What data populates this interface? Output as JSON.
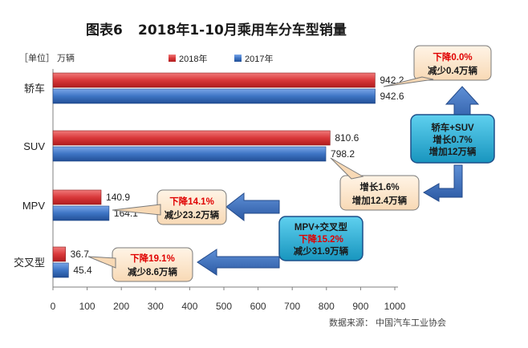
{
  "title_prefix": "图表6",
  "title_main": "2018年1-10月乘用车分车型销量",
  "unit": "［单位］ 万辆",
  "source": "数据来源：  中国汽车工业协会",
  "colors": {
    "s2018": "#d9383a",
    "s2017": "#3d74c4",
    "callout_fill": "#fde8cf",
    "teal": "#1fa0c7"
  },
  "chart_data": {
    "type": "bar",
    "orientation": "horizontal",
    "categories": [
      "轿车",
      "SUV",
      "MPV",
      "交叉型"
    ],
    "series": [
      {
        "name": "2018年",
        "values": [
          942.2,
          810.6,
          140.9,
          36.7
        ]
      },
      {
        "name": "2017年",
        "values": [
          942.6,
          798.2,
          164.1,
          45.4
        ]
      }
    ],
    "xlim": [
      0,
      1000
    ],
    "xticks": [
      0,
      100,
      200,
      300,
      400,
      500,
      600,
      700,
      800,
      900,
      1000
    ],
    "legend_position": "top",
    "grid": false
  },
  "callouts": {
    "sedan": {
      "line1": "下降0.0%",
      "line2": "减少0.4万辆"
    },
    "mpv": {
      "line1": "下降14.1%",
      "line2": "减少23.2万辆"
    },
    "cross": {
      "line1": "下降19.1%",
      "line2": "减少8.6万辆"
    },
    "suv": {
      "line1": "增长1.6%",
      "line2": "增加12.4万辆"
    },
    "sedan_suv": {
      "line1": "轿车+SUV",
      "line2": "增长0.7%",
      "line3": "增加12万辆"
    },
    "mpv_cross": {
      "line1": "MPV+交叉型",
      "line2": "下降15.2%",
      "line3": "减少31.9万辆"
    }
  }
}
